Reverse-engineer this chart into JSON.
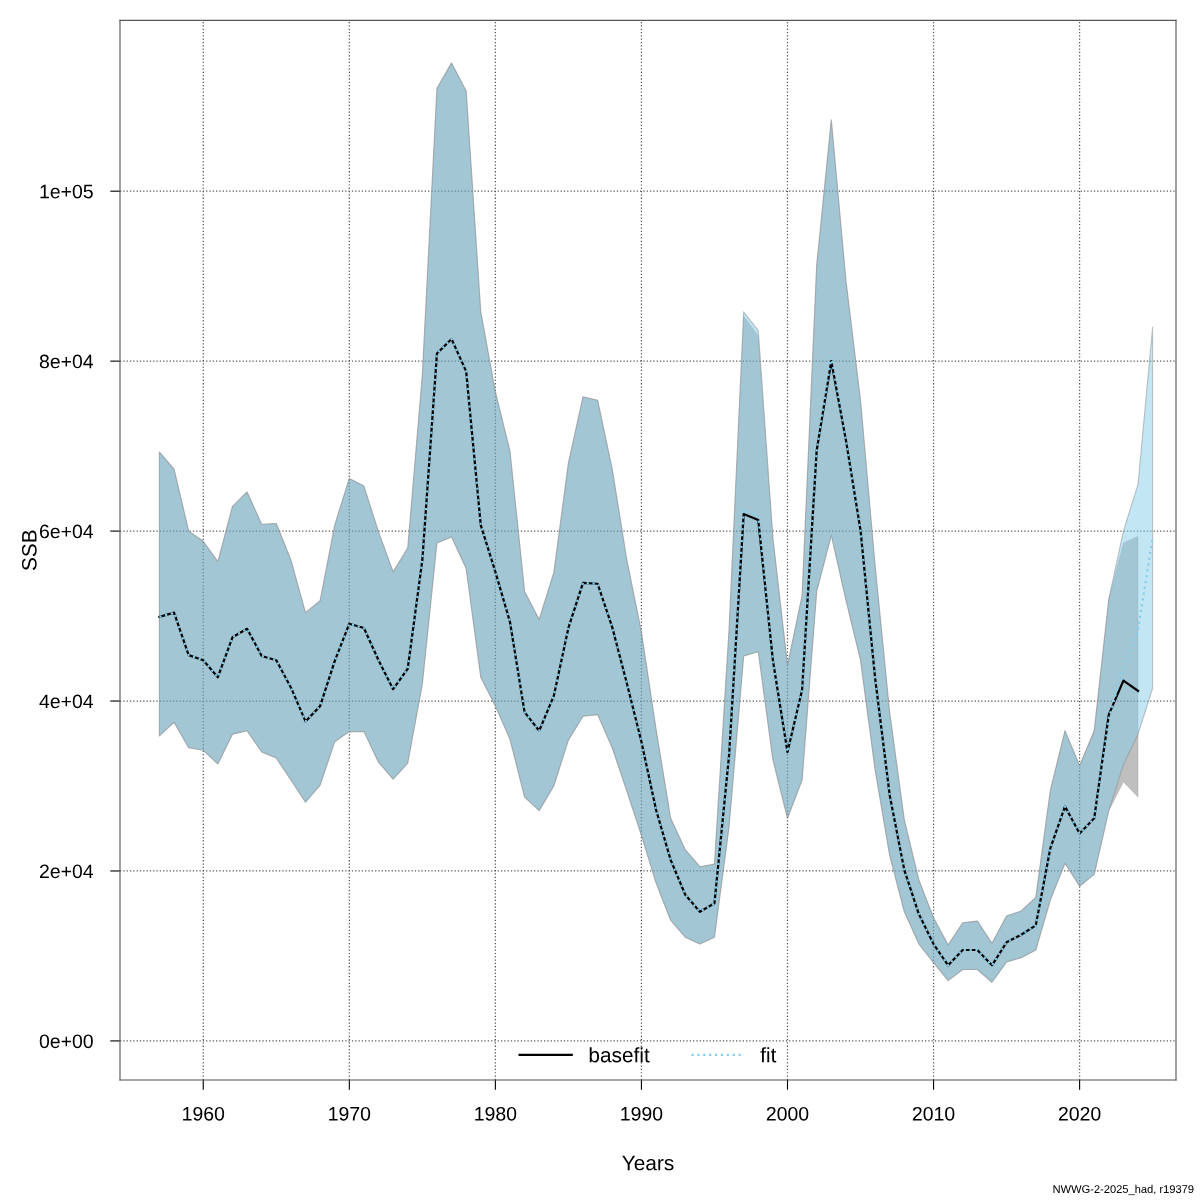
{
  "chart_data": {
    "type": "line",
    "xlabel": "Years",
    "ylabel": "SSB",
    "x": [
      1957,
      1958,
      1959,
      1960,
      1961,
      1962,
      1963,
      1964,
      1965,
      1966,
      1967,
      1968,
      1969,
      1970,
      1971,
      1972,
      1973,
      1974,
      1975,
      1976,
      1977,
      1978,
      1979,
      1980,
      1981,
      1982,
      1983,
      1984,
      1985,
      1986,
      1987,
      1988,
      1989,
      1990,
      1991,
      1992,
      1993,
      1994,
      1995,
      1996,
      1997,
      1998,
      1999,
      2000,
      2001,
      2002,
      2003,
      2004,
      2005,
      2006,
      2007,
      2008,
      2009,
      2010,
      2011,
      2012,
      2013,
      2014,
      2015,
      2016,
      2017,
      2018,
      2019,
      2020,
      2021,
      2022,
      2023,
      2024,
      2025
    ],
    "series": [
      {
        "name": "basefit",
        "color": "#000000",
        "line_style": "solid",
        "x": [
          1957,
          1958,
          1959,
          1960,
          1961,
          1962,
          1963,
          1964,
          1965,
          1966,
          1967,
          1968,
          1969,
          1970,
          1971,
          1972,
          1973,
          1974,
          1975,
          1976,
          1977,
          1978,
          1979,
          1980,
          1981,
          1982,
          1983,
          1984,
          1985,
          1986,
          1987,
          1988,
          1989,
          1990,
          1991,
          1992,
          1993,
          1994,
          1995,
          1996,
          1997,
          1998,
          1999,
          2000,
          2001,
          2002,
          2003,
          2004,
          2005,
          2006,
          2007,
          2008,
          2009,
          2010,
          2011,
          2012,
          2013,
          2014,
          2015,
          2016,
          2017,
          2018,
          2019,
          2020,
          2021,
          2022,
          2023,
          2024
        ],
        "values": [
          49900,
          50400,
          45400,
          44800,
          42800,
          47500,
          48500,
          45300,
          44800,
          41600,
          37600,
          39400,
          44700,
          49100,
          48600,
          44800,
          41400,
          43800,
          56600,
          80900,
          82600,
          78800,
          60700,
          55200,
          49300,
          38700,
          36500,
          40600,
          48600,
          53900,
          53800,
          48700,
          42100,
          35200,
          27200,
          21300,
          17200,
          15200,
          16200,
          33600,
          62000,
          61300,
          44800,
          34000,
          41300,
          69500,
          80000,
          70700,
          60100,
          42700,
          28900,
          20100,
          14900,
          11400,
          8900,
          10700,
          10700,
          8900,
          11600,
          12500,
          13600,
          22700,
          27600,
          24400,
          26200,
          38400,
          42400,
          41200
        ],
        "lower": [
          35900,
          37500,
          34500,
          34200,
          32600,
          36100,
          36500,
          34000,
          33300,
          30700,
          28100,
          30100,
          35200,
          36400,
          36400,
          32800,
          30800,
          32700,
          42000,
          58600,
          59300,
          55600,
          42800,
          39400,
          35500,
          28700,
          27100,
          30000,
          35400,
          38200,
          38400,
          34500,
          29400,
          24200,
          18600,
          14200,
          12200,
          11400,
          12200,
          25200,
          45300,
          45800,
          33100,
          26200,
          30700,
          52900,
          59500,
          51900,
          44800,
          31900,
          21800,
          15200,
          11400,
          9200,
          7100,
          8400,
          8400,
          6900,
          9300,
          9800,
          10700,
          16600,
          20900,
          18200,
          19600,
          27100,
          30500,
          28700
        ],
        "upper": [
          69300,
          67300,
          60000,
          58800,
          56400,
          62900,
          64600,
          60800,
          60900,
          56600,
          50400,
          51800,
          60700,
          66200,
          65300,
          59900,
          55200,
          58000,
          78400,
          112100,
          115100,
          111800,
          85800,
          76400,
          69400,
          52900,
          49600,
          55100,
          68000,
          75800,
          75400,
          67300,
          56600,
          48100,
          36700,
          26200,
          22500,
          20500,
          20800,
          48400,
          85300,
          83000,
          59200,
          44200,
          52400,
          91300,
          108400,
          89500,
          75400,
          55900,
          38600,
          26000,
          18900,
          14500,
          11300,
          13900,
          14100,
          11500,
          14700,
          15300,
          16900,
          29500,
          36500,
          32400,
          36600,
          52000,
          58600,
          59400
        ]
      },
      {
        "name": "fit",
        "color": "#87ceeb",
        "line_style": "dotted",
        "values": [
          49900,
          50400,
          45400,
          44800,
          42800,
          47500,
          48500,
          45300,
          44800,
          41600,
          37600,
          39400,
          44700,
          49100,
          48600,
          44800,
          41400,
          43800,
          56600,
          80900,
          82600,
          78800,
          60700,
          55200,
          49300,
          38700,
          36500,
          40600,
          48600,
          53900,
          53800,
          48700,
          42100,
          35200,
          27200,
          21300,
          17200,
          15200,
          16200,
          33600,
          62500,
          61800,
          44800,
          34000,
          41300,
          69500,
          80500,
          70700,
          60100,
          42700,
          28900,
          20100,
          14900,
          11400,
          8900,
          10700,
          10700,
          8900,
          11600,
          12500,
          13600,
          22700,
          27600,
          24400,
          26200,
          38000,
          43900,
          48400,
          59200
        ],
        "lower": [
          35900,
          37500,
          34500,
          34200,
          32600,
          36100,
          36500,
          34000,
          33300,
          30700,
          28100,
          30100,
          35200,
          36400,
          36400,
          32800,
          30800,
          32700,
          42000,
          58600,
          59300,
          55600,
          42800,
          39400,
          35500,
          28700,
          27100,
          30000,
          35400,
          38200,
          38400,
          34500,
          29400,
          24200,
          18600,
          14200,
          12200,
          11400,
          12200,
          25200,
          45300,
          45800,
          33100,
          26200,
          30700,
          52900,
          59500,
          51900,
          44800,
          31900,
          21800,
          15200,
          11400,
          9200,
          7100,
          8400,
          8400,
          6900,
          9300,
          9800,
          10700,
          16600,
          20900,
          18200,
          19600,
          27100,
          32500,
          36100,
          41500
        ],
        "upper": [
          69300,
          67300,
          60000,
          58800,
          56400,
          62900,
          64600,
          60800,
          60900,
          56600,
          50400,
          51800,
          60700,
          66200,
          65300,
          59900,
          55200,
          58000,
          78400,
          112100,
          115100,
          111800,
          85800,
          76400,
          69400,
          52900,
          49600,
          55100,
          68000,
          75800,
          75400,
          67300,
          56600,
          48100,
          36700,
          26200,
          22500,
          20500,
          20800,
          48400,
          85800,
          83600,
          59200,
          44200,
          52400,
          91300,
          108400,
          89500,
          75400,
          55900,
          38600,
          26000,
          18900,
          14500,
          11300,
          13900,
          14100,
          11500,
          14700,
          15300,
          16900,
          29500,
          36500,
          32400,
          36400,
          52000,
          60000,
          65500,
          84000
        ]
      }
    ],
    "xlim": [
      1954.3,
      2026.6
    ],
    "xticks": [
      1960,
      1970,
      1980,
      1990,
      2000,
      2010,
      2020
    ],
    "ylim": [
      -4600,
      120100
    ],
    "yticks": [
      {
        "value": 0,
        "label": "0e+00"
      },
      {
        "value": 20000,
        "label": "2e+04"
      },
      {
        "value": 40000,
        "label": "4e+04"
      },
      {
        "value": 60000,
        "label": "6e+04"
      },
      {
        "value": 80000,
        "label": "8e+04"
      },
      {
        "value": 100000,
        "label": "1e+05"
      }
    ],
    "grid": true,
    "legend": "bottom",
    "marker": "none",
    "annotations": [
      "NWWG-2-2025_had, r19379"
    ]
  }
}
